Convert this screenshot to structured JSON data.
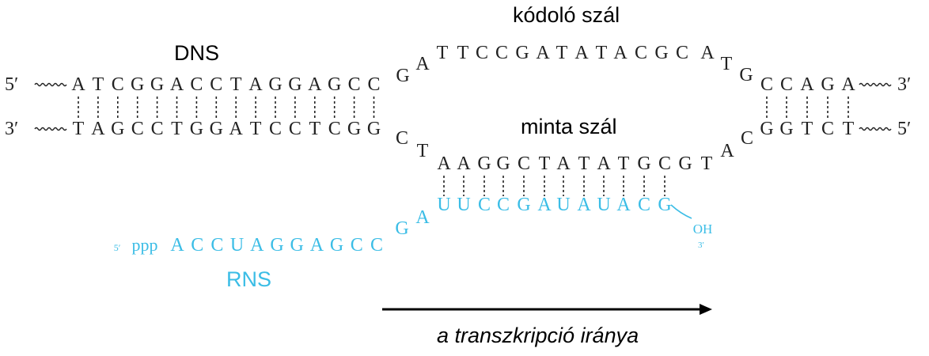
{
  "labels": {
    "dns": "DNS",
    "coding_strand": "kódoló szál",
    "template_strand": "minta szál",
    "rns": "RNS",
    "direction": "a transzkripció iránya"
  },
  "ends": {
    "top_left": "5′",
    "top_right": "3′",
    "bottom_left": "3′",
    "bottom_right": "5′",
    "rna_5prime": "5′",
    "rna_triphosphate": "ppp",
    "rna_3prime_oh": "OH",
    "rna_3prime": "3′"
  },
  "sequences": {
    "coding_left": "ATCGGACCTAGGAGCC",
    "coding_bubble": "GATTCCGATATACGCATG",
    "coding_right": "CCAGA",
    "template_left": "TAGCCTGGATCCTCGG",
    "template_bubble": "CTAAGGCTATATGCGTAC",
    "template_right": "GGTCT",
    "rna_left": "ACCUAGGAGCC",
    "rna_bubble": "GAUUCCGAUAUACG"
  },
  "colors": {
    "dna": "#222222",
    "rna": "#3bbde6",
    "arrow": "#000000"
  }
}
